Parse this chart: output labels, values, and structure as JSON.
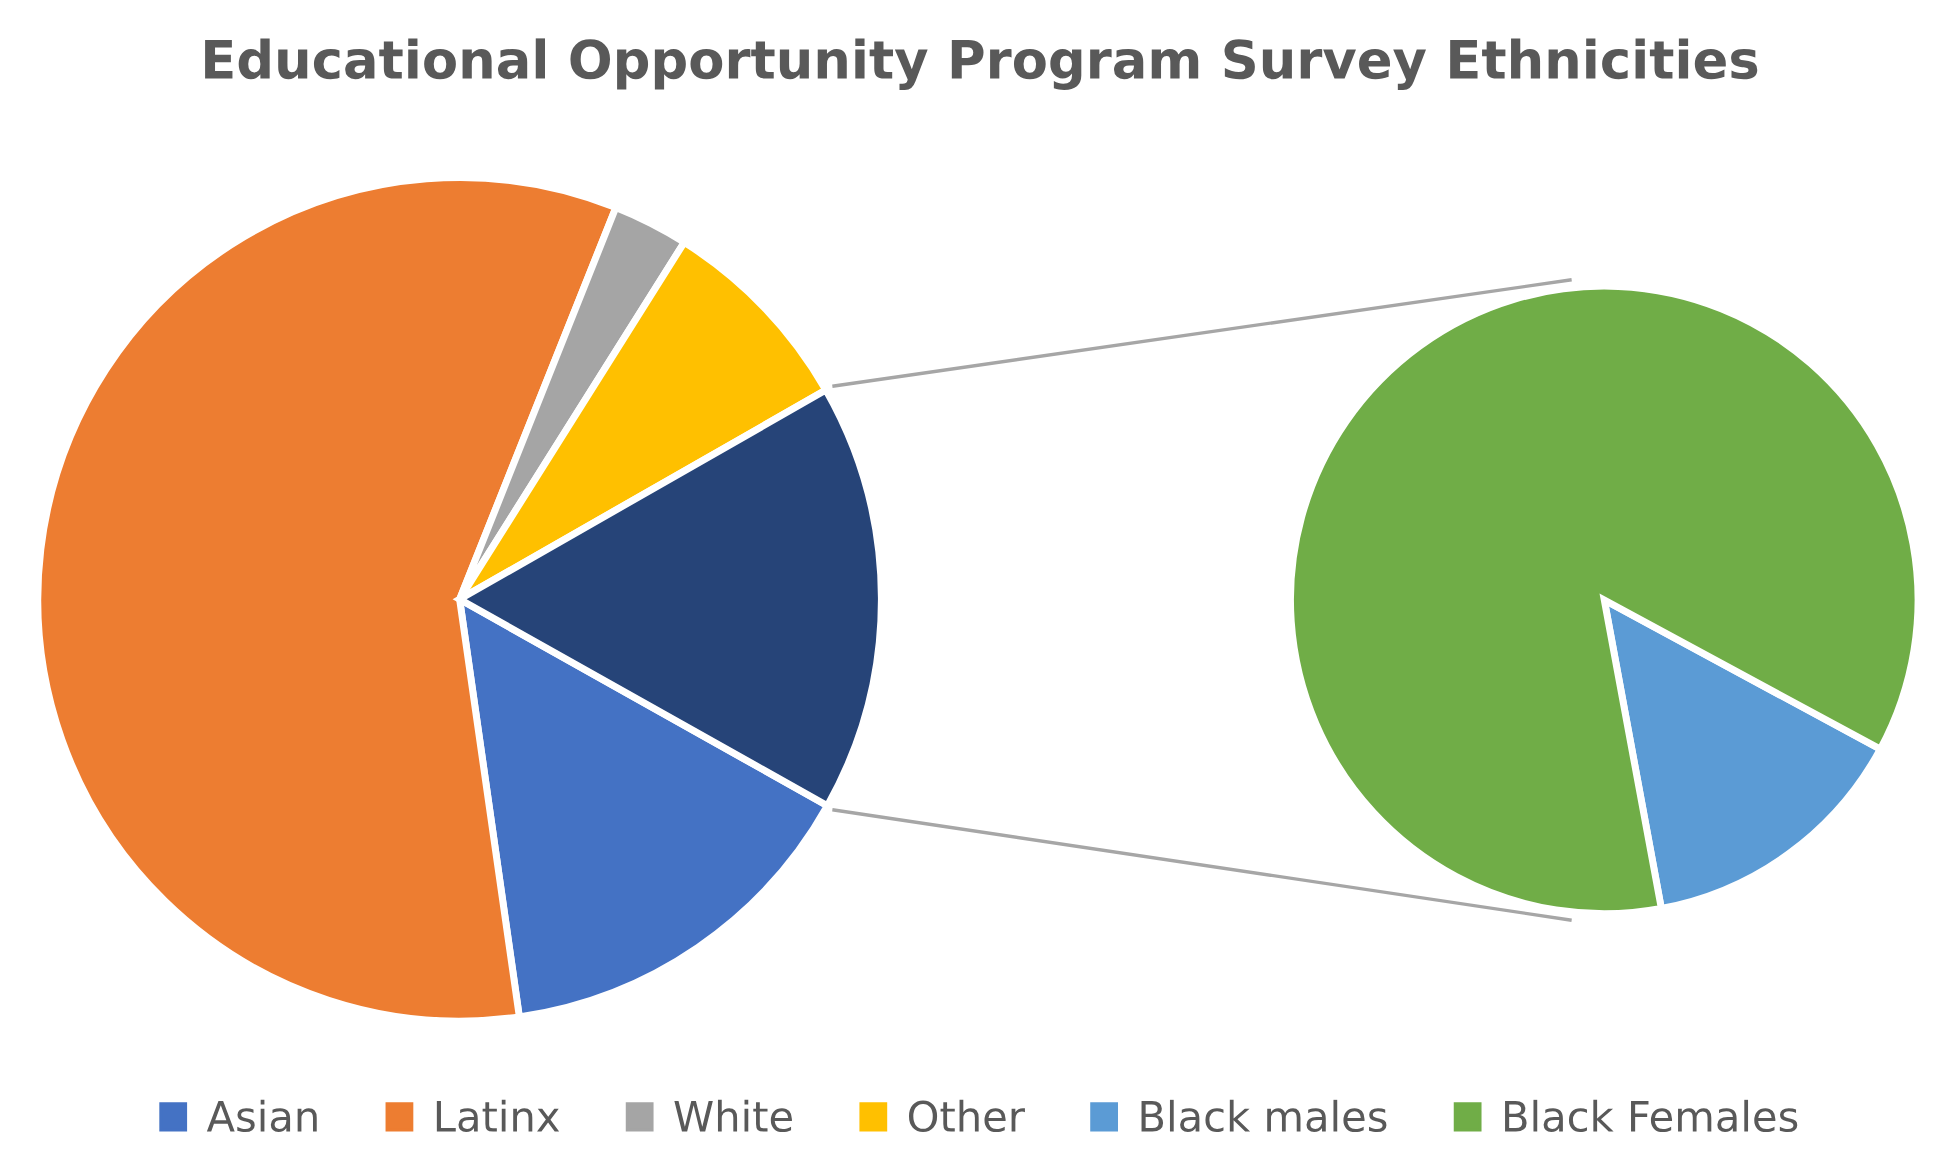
{
  "chart_data": [
    {
      "type": "pie",
      "title": "Educational Opportunity Program Survey Ethnicities",
      "categories": [
        "Asian",
        "Latinx",
        "White",
        "Other",
        null
      ],
      "values": [
        14.6,
        58.3,
        2.9,
        7.8,
        16.4
      ],
      "colors": [
        "#4472c4",
        "#ed7d31",
        "#a5a5a5",
        "#ffc000",
        "#264478"
      ],
      "legend": "bottom"
    },
    {
      "type": "pie",
      "categories": [
        "Black males",
        "Black Females"
      ],
      "values": [
        14.2,
        85.8
      ],
      "colors": [
        "#5b9bd5",
        "#70ad47"
      ],
      "legend": "bottom"
    }
  ]
}
